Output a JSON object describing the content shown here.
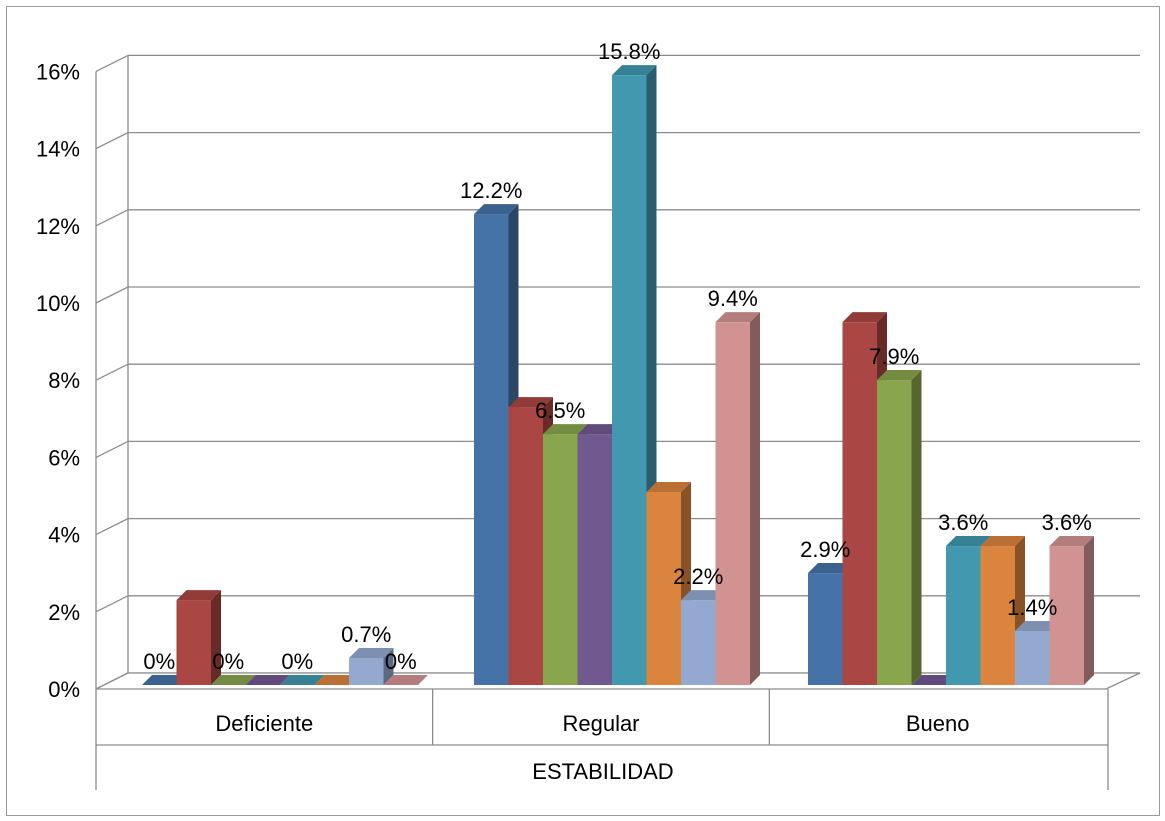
{
  "chart_data": {
    "type": "bar",
    "title": "",
    "xlabel": "ESTABILIDAD",
    "ylabel": "",
    "ylim": [
      0,
      16
    ],
    "y_ticks": [
      "0%",
      "2%",
      "4%",
      "6%",
      "8%",
      "10%",
      "12%",
      "14%",
      "16%"
    ],
    "y_tick_values": [
      0,
      2,
      4,
      6,
      8,
      10,
      12,
      14,
      16
    ],
    "grid": true,
    "legend": "none",
    "categories": [
      "Deficiente",
      "Regular",
      "Bueno"
    ],
    "series": [
      {
        "color": "#4572a7",
        "values": [
          0,
          12.2,
          2.9
        ]
      },
      {
        "color": "#aa4643",
        "values": [
          2.2,
          7.2,
          9.4
        ]
      },
      {
        "color": "#89a54e",
        "values": [
          0,
          6.5,
          7.9
        ]
      },
      {
        "color": "#71588f",
        "values": [
          0,
          6.5,
          0
        ]
      },
      {
        "color": "#4198af",
        "values": [
          0,
          15.8,
          3.6
        ]
      },
      {
        "color": "#db843d",
        "values": [
          0,
          5.0,
          3.6
        ]
      },
      {
        "color": "#93a9cf",
        "values": [
          0.7,
          2.2,
          1.4
        ]
      },
      {
        "color": "#d19392",
        "values": [
          0,
          9.4,
          3.6
        ]
      }
    ],
    "data_labels": [
      {
        "category": 0,
        "series": 0,
        "text": "0%"
      },
      {
        "category": 0,
        "series": 2,
        "text": "0%"
      },
      {
        "category": 0,
        "series": 4,
        "text": "0%"
      },
      {
        "category": 0,
        "series": 6,
        "text": "0.7%"
      },
      {
        "category": 0,
        "series": 7,
        "text": "0%"
      },
      {
        "category": 1,
        "series": 0,
        "text": "12.2%"
      },
      {
        "category": 1,
        "series": 2,
        "text": "6.5%"
      },
      {
        "category": 1,
        "series": 4,
        "text": "15.8%"
      },
      {
        "category": 1,
        "series": 6,
        "text": "2.2%"
      },
      {
        "category": 1,
        "series": 7,
        "text": "9.4%"
      },
      {
        "category": 2,
        "series": 0,
        "text": "2.9%"
      },
      {
        "category": 2,
        "series": 2,
        "text": "7.9%"
      },
      {
        "category": 2,
        "series": 4,
        "text": "3.6%"
      },
      {
        "category": 2,
        "series": 6,
        "text": "1.4%"
      },
      {
        "category": 2,
        "series": 7,
        "text": "3.6%"
      }
    ]
  }
}
